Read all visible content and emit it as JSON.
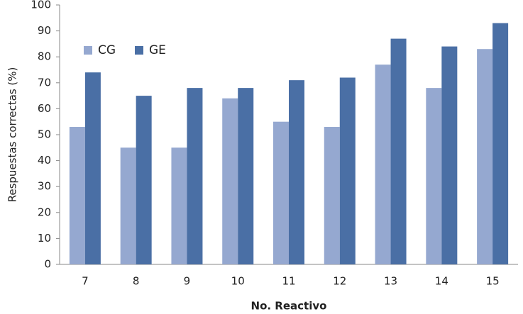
{
  "chart_data": {
    "type": "bar",
    "categories": [
      "7",
      "8",
      "9",
      "10",
      "11",
      "12",
      "13",
      "14",
      "15"
    ],
    "series": [
      {
        "name": "CG",
        "color": "#95a8d0",
        "values": [
          53,
          45,
          45,
          64,
          55,
          53,
          77,
          68,
          83
        ]
      },
      {
        "name": "GE",
        "color": "#4a6fa5",
        "values": [
          74,
          65,
          68,
          68,
          71,
          72,
          87,
          84,
          93
        ]
      }
    ],
    "ylim": [
      0,
      100
    ],
    "yticks": [
      0,
      10,
      20,
      30,
      40,
      50,
      60,
      70,
      80,
      90,
      100
    ],
    "ylabel": "Respuestas correctas (%)",
    "xlabel": "No. Reactivo",
    "grid": false,
    "legend": "upper left"
  }
}
